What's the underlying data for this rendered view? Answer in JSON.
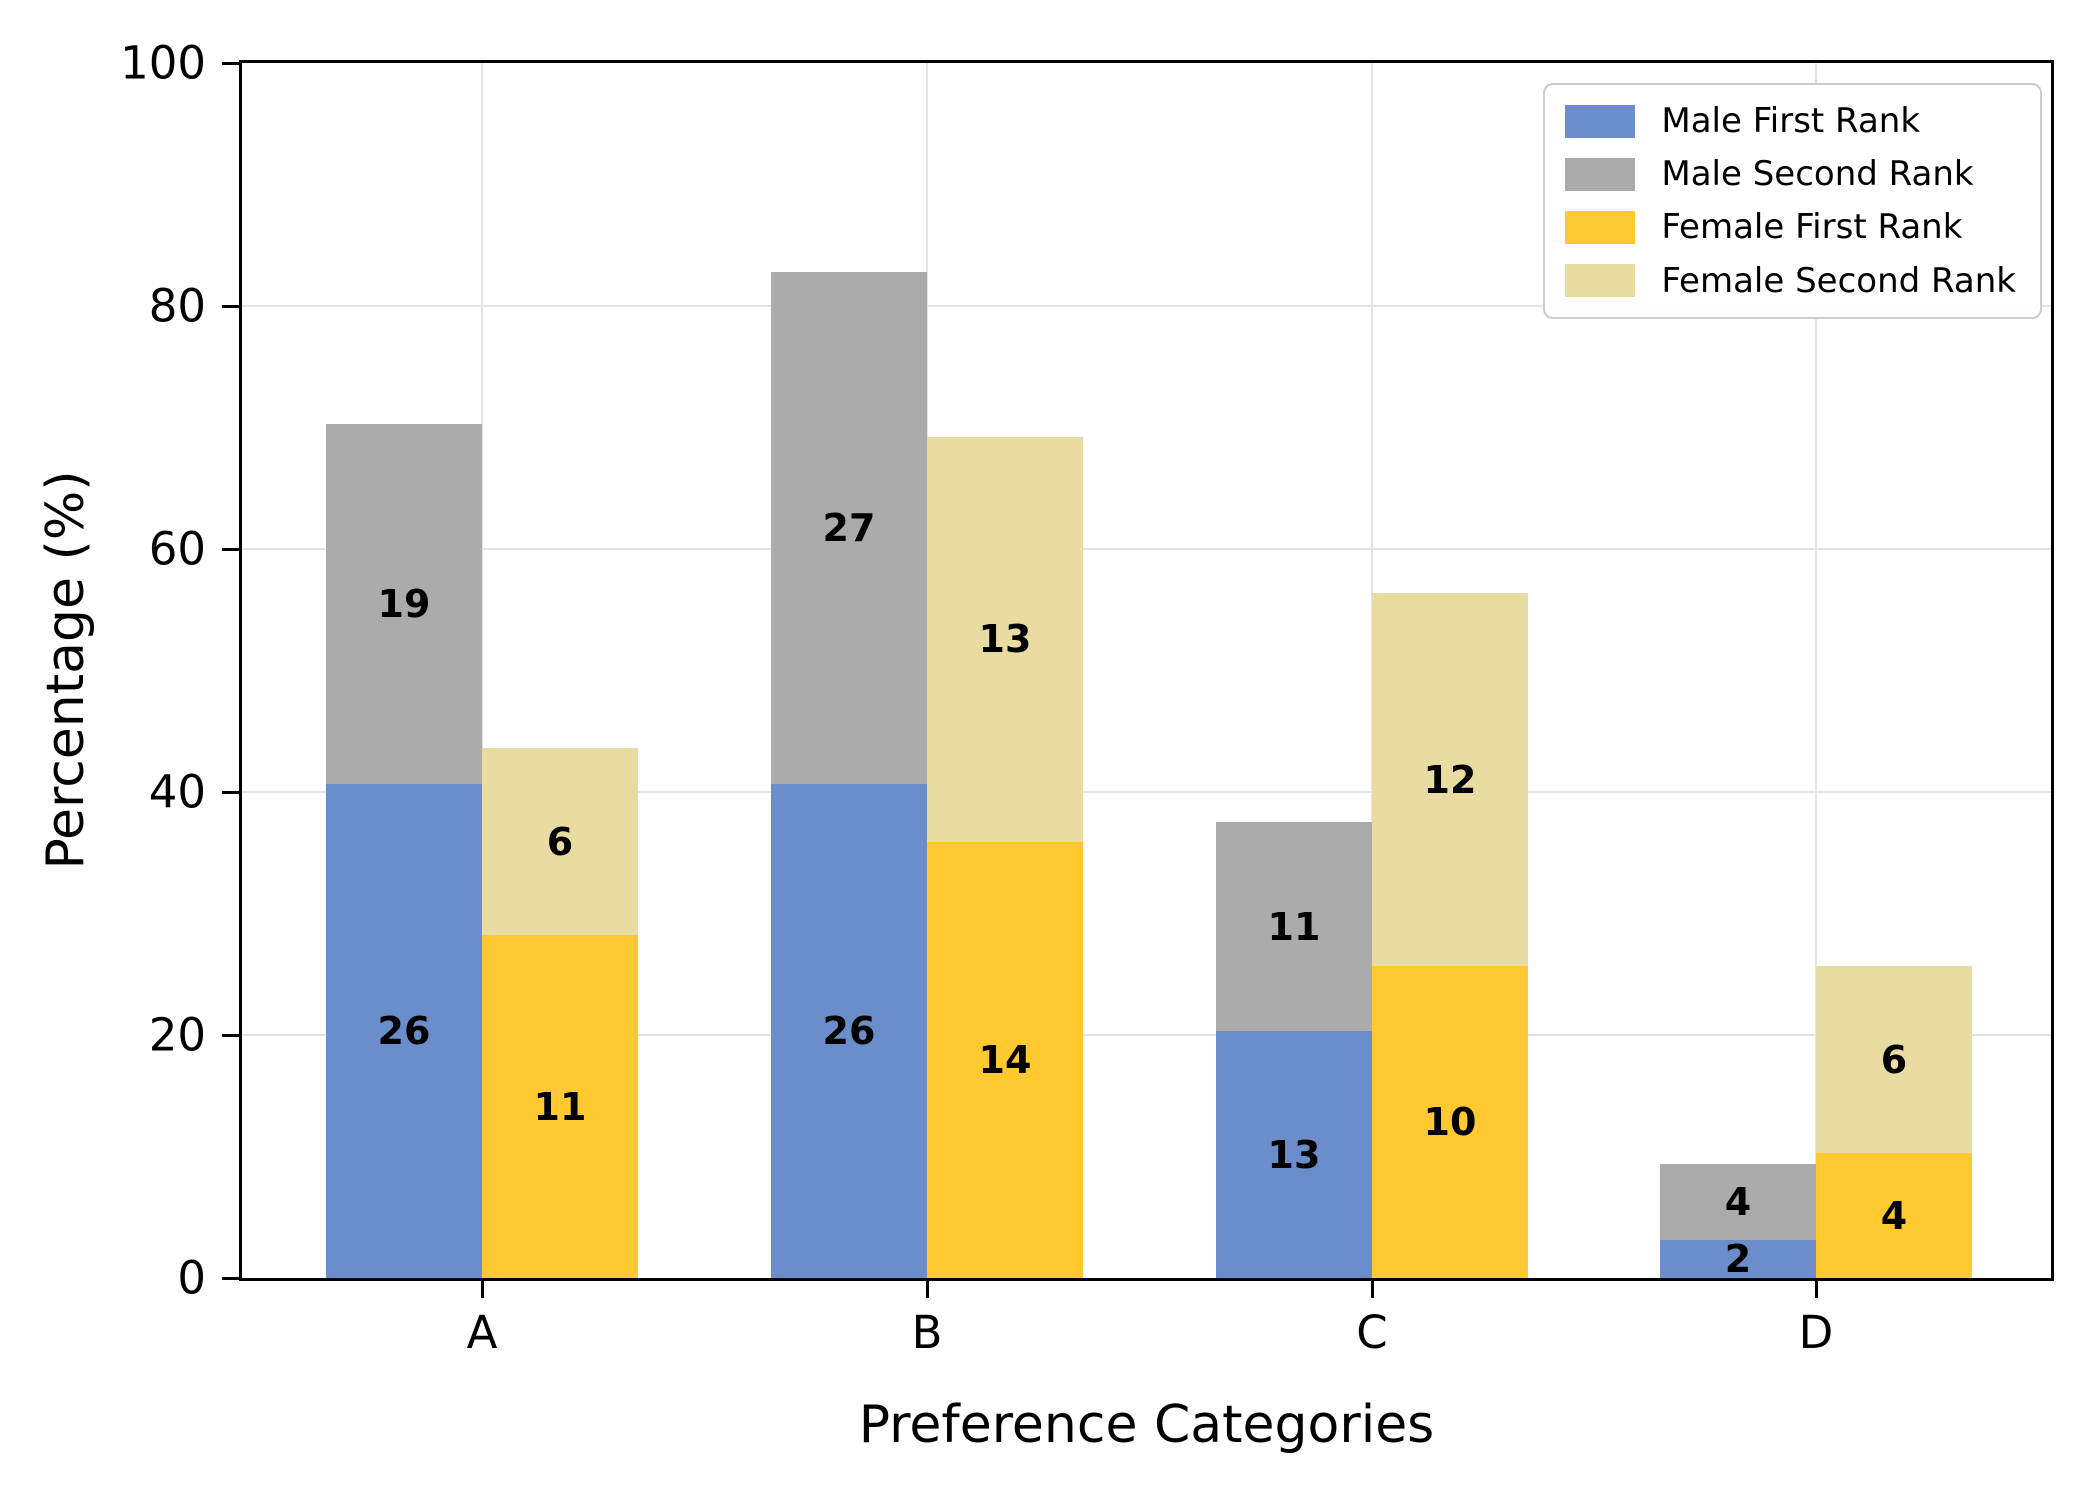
{
  "chart_data": {
    "type": "bar",
    "variant": "grouped-stacked",
    "title": "",
    "xlabel": "Preference Categories",
    "ylabel": "Percentage (%)",
    "categories": [
      "A",
      "B",
      "C",
      "D"
    ],
    "ylim": [
      0,
      100
    ],
    "y_ticks": [
      0,
      20,
      40,
      60,
      80,
      100
    ],
    "grid": "both",
    "legend_position": "upper right",
    "bar_value_labels": "counts",
    "series": [
      {
        "name": "Male First Rank",
        "group": "male",
        "color": "#6C8DCB",
        "counts": [
          26,
          26,
          13,
          2
        ],
        "pct": [
          40.63,
          40.63,
          20.31,
          3.13
        ]
      },
      {
        "name": "Male Second Rank",
        "group": "male",
        "color": "#ABABAB",
        "counts": [
          19,
          27,
          11,
          4
        ],
        "pct": [
          29.69,
          42.19,
          17.19,
          6.25
        ]
      },
      {
        "name": "Female First Rank",
        "group": "female",
        "color": "#FFC92F",
        "counts": [
          11,
          14,
          10,
          4
        ],
        "pct": [
          28.21,
          35.9,
          25.64,
          10.26
        ]
      },
      {
        "name": "Female Second Rank",
        "group": "female",
        "color": "#E9DCA2",
        "counts": [
          6,
          13,
          12,
          6
        ],
        "pct": [
          15.38,
          33.33,
          30.77,
          15.38
        ]
      }
    ],
    "group_totals_pct": {
      "male": [
        70.31,
        82.81,
        37.5,
        9.38
      ],
      "female": [
        43.59,
        69.23,
        56.41,
        25.64
      ]
    }
  },
  "colors": {
    "male_first": "#6C8DCB",
    "male_second": "#ABABAB",
    "female_first": "#FFC92F",
    "female_second": "#E9DCA2",
    "gridline": "#E4E4E4",
    "spine": "#000000",
    "legend_border": "#CCCCCC",
    "background": "#FFFFFF",
    "text": "#000000"
  }
}
